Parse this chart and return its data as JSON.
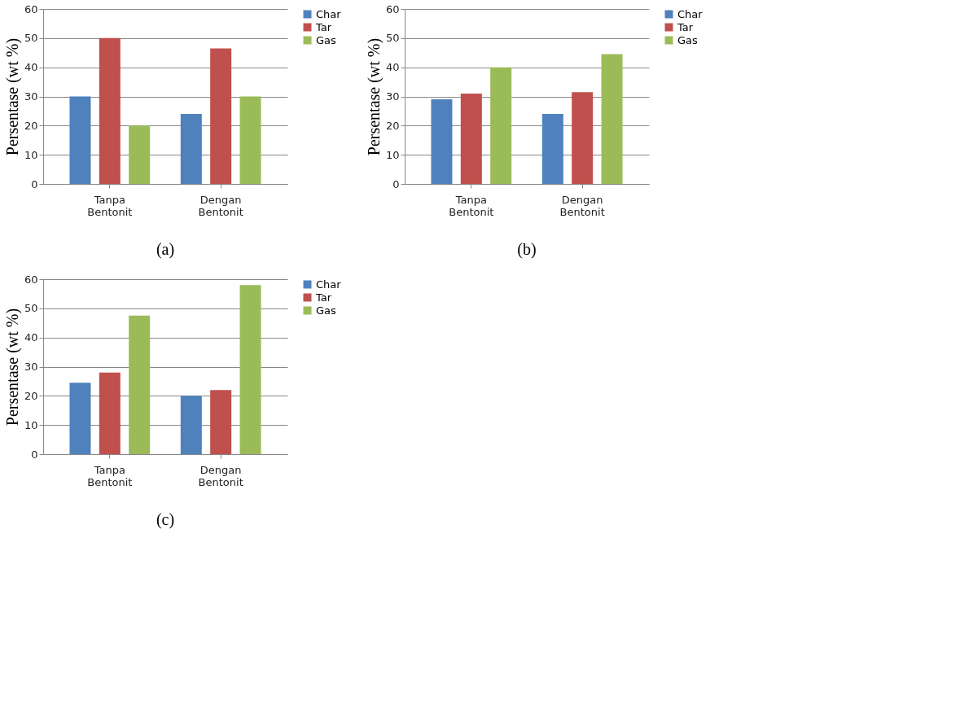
{
  "chart_data": [
    {
      "type": "bar",
      "ylabel": "Persentase (wt %)",
      "annotations": [
        "(a)"
      ],
      "categories": [
        "Tanpa Bentonit",
        "Dengan Bentonit"
      ],
      "ylim": [
        0,
        60
      ],
      "yticks": [
        0,
        10,
        20,
        30,
        40,
        50,
        60
      ],
      "grid": "y",
      "legend": "right",
      "series": [
        {
          "name": "Char",
          "color": "#4f81bd",
          "values": [
            30,
            24
          ]
        },
        {
          "name": "Tar",
          "color": "#c0504d",
          "values": [
            50,
            46.5
          ]
        },
        {
          "name": "Gas",
          "color": "#9bbb59",
          "values": [
            20,
            30
          ]
        }
      ]
    },
    {
      "type": "bar",
      "ylabel": "Persentase (wt %)",
      "annotations": [
        "(b)"
      ],
      "categories": [
        "Tanpa Bentonit",
        "Dengan Bentonit"
      ],
      "ylim": [
        0,
        60
      ],
      "yticks": [
        0,
        10,
        20,
        30,
        40,
        50,
        60
      ],
      "grid": "y",
      "legend": "right",
      "series": [
        {
          "name": "Char",
          "color": "#4f81bd",
          "values": [
            29,
            24
          ]
        },
        {
          "name": "Tar",
          "color": "#c0504d",
          "values": [
            31,
            31.5
          ]
        },
        {
          "name": "Gas",
          "color": "#9bbb59",
          "values": [
            40,
            44.5
          ]
        }
      ]
    },
    {
      "type": "bar",
      "ylabel": "Persentase (wt %)",
      "annotations": [
        "(c)"
      ],
      "categories": [
        "Tanpa Bentonit",
        "Dengan Bentonit"
      ],
      "ylim": [
        0,
        60
      ],
      "yticks": [
        0,
        10,
        20,
        30,
        40,
        50,
        60
      ],
      "grid": "y",
      "legend": "right",
      "series": [
        {
          "name": "Char",
          "color": "#4f81bd",
          "values": [
            24.5,
            20
          ]
        },
        {
          "name": "Tar",
          "color": "#c0504d",
          "values": [
            28,
            22
          ]
        },
        {
          "name": "Gas",
          "color": "#9bbb59",
          "values": [
            47.5,
            58
          ]
        }
      ]
    }
  ]
}
